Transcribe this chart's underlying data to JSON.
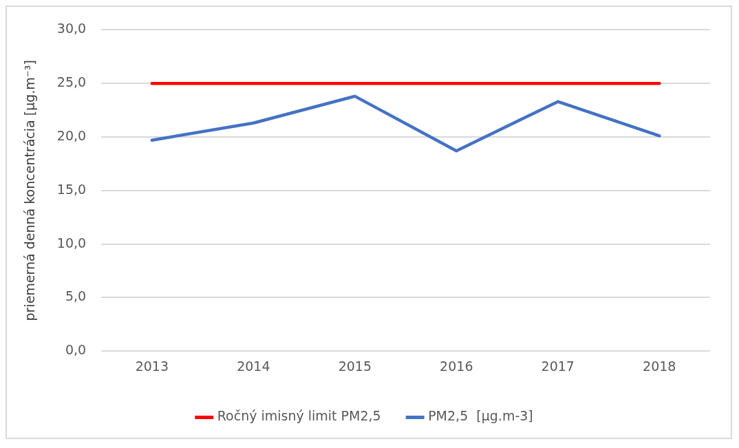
{
  "chart_data": {
    "type": "line",
    "ylabel": "priemerná denná koncentrácia [µg.m⁻³]",
    "categories": [
      "2013",
      "2014",
      "2015",
      "2016",
      "2017",
      "2018"
    ],
    "series": [
      {
        "name": "Ročný imisný limit PM2,5",
        "color": "#ff0000",
        "values": [
          25,
          25,
          25,
          25,
          25,
          25
        ]
      },
      {
        "name": "PM2,5  [µg.m-3]",
        "color": "#4472c4",
        "values": [
          19.7,
          21.3,
          23.8,
          18.7,
          23.3,
          20.1
        ]
      }
    ],
    "ylim": [
      0,
      30
    ],
    "yticks": [
      {
        "value": 0,
        "label": "0,0"
      },
      {
        "value": 5,
        "label": "5,0"
      },
      {
        "value": 10,
        "label": "10,0"
      },
      {
        "value": 15,
        "label": "15,0"
      },
      {
        "value": 20,
        "label": "20,0"
      },
      {
        "value": 25,
        "label": "25,0"
      },
      {
        "value": 30,
        "label": "30,0"
      }
    ],
    "grid": "y",
    "legend": "bottom",
    "marker": "none",
    "line_style": "solid"
  }
}
